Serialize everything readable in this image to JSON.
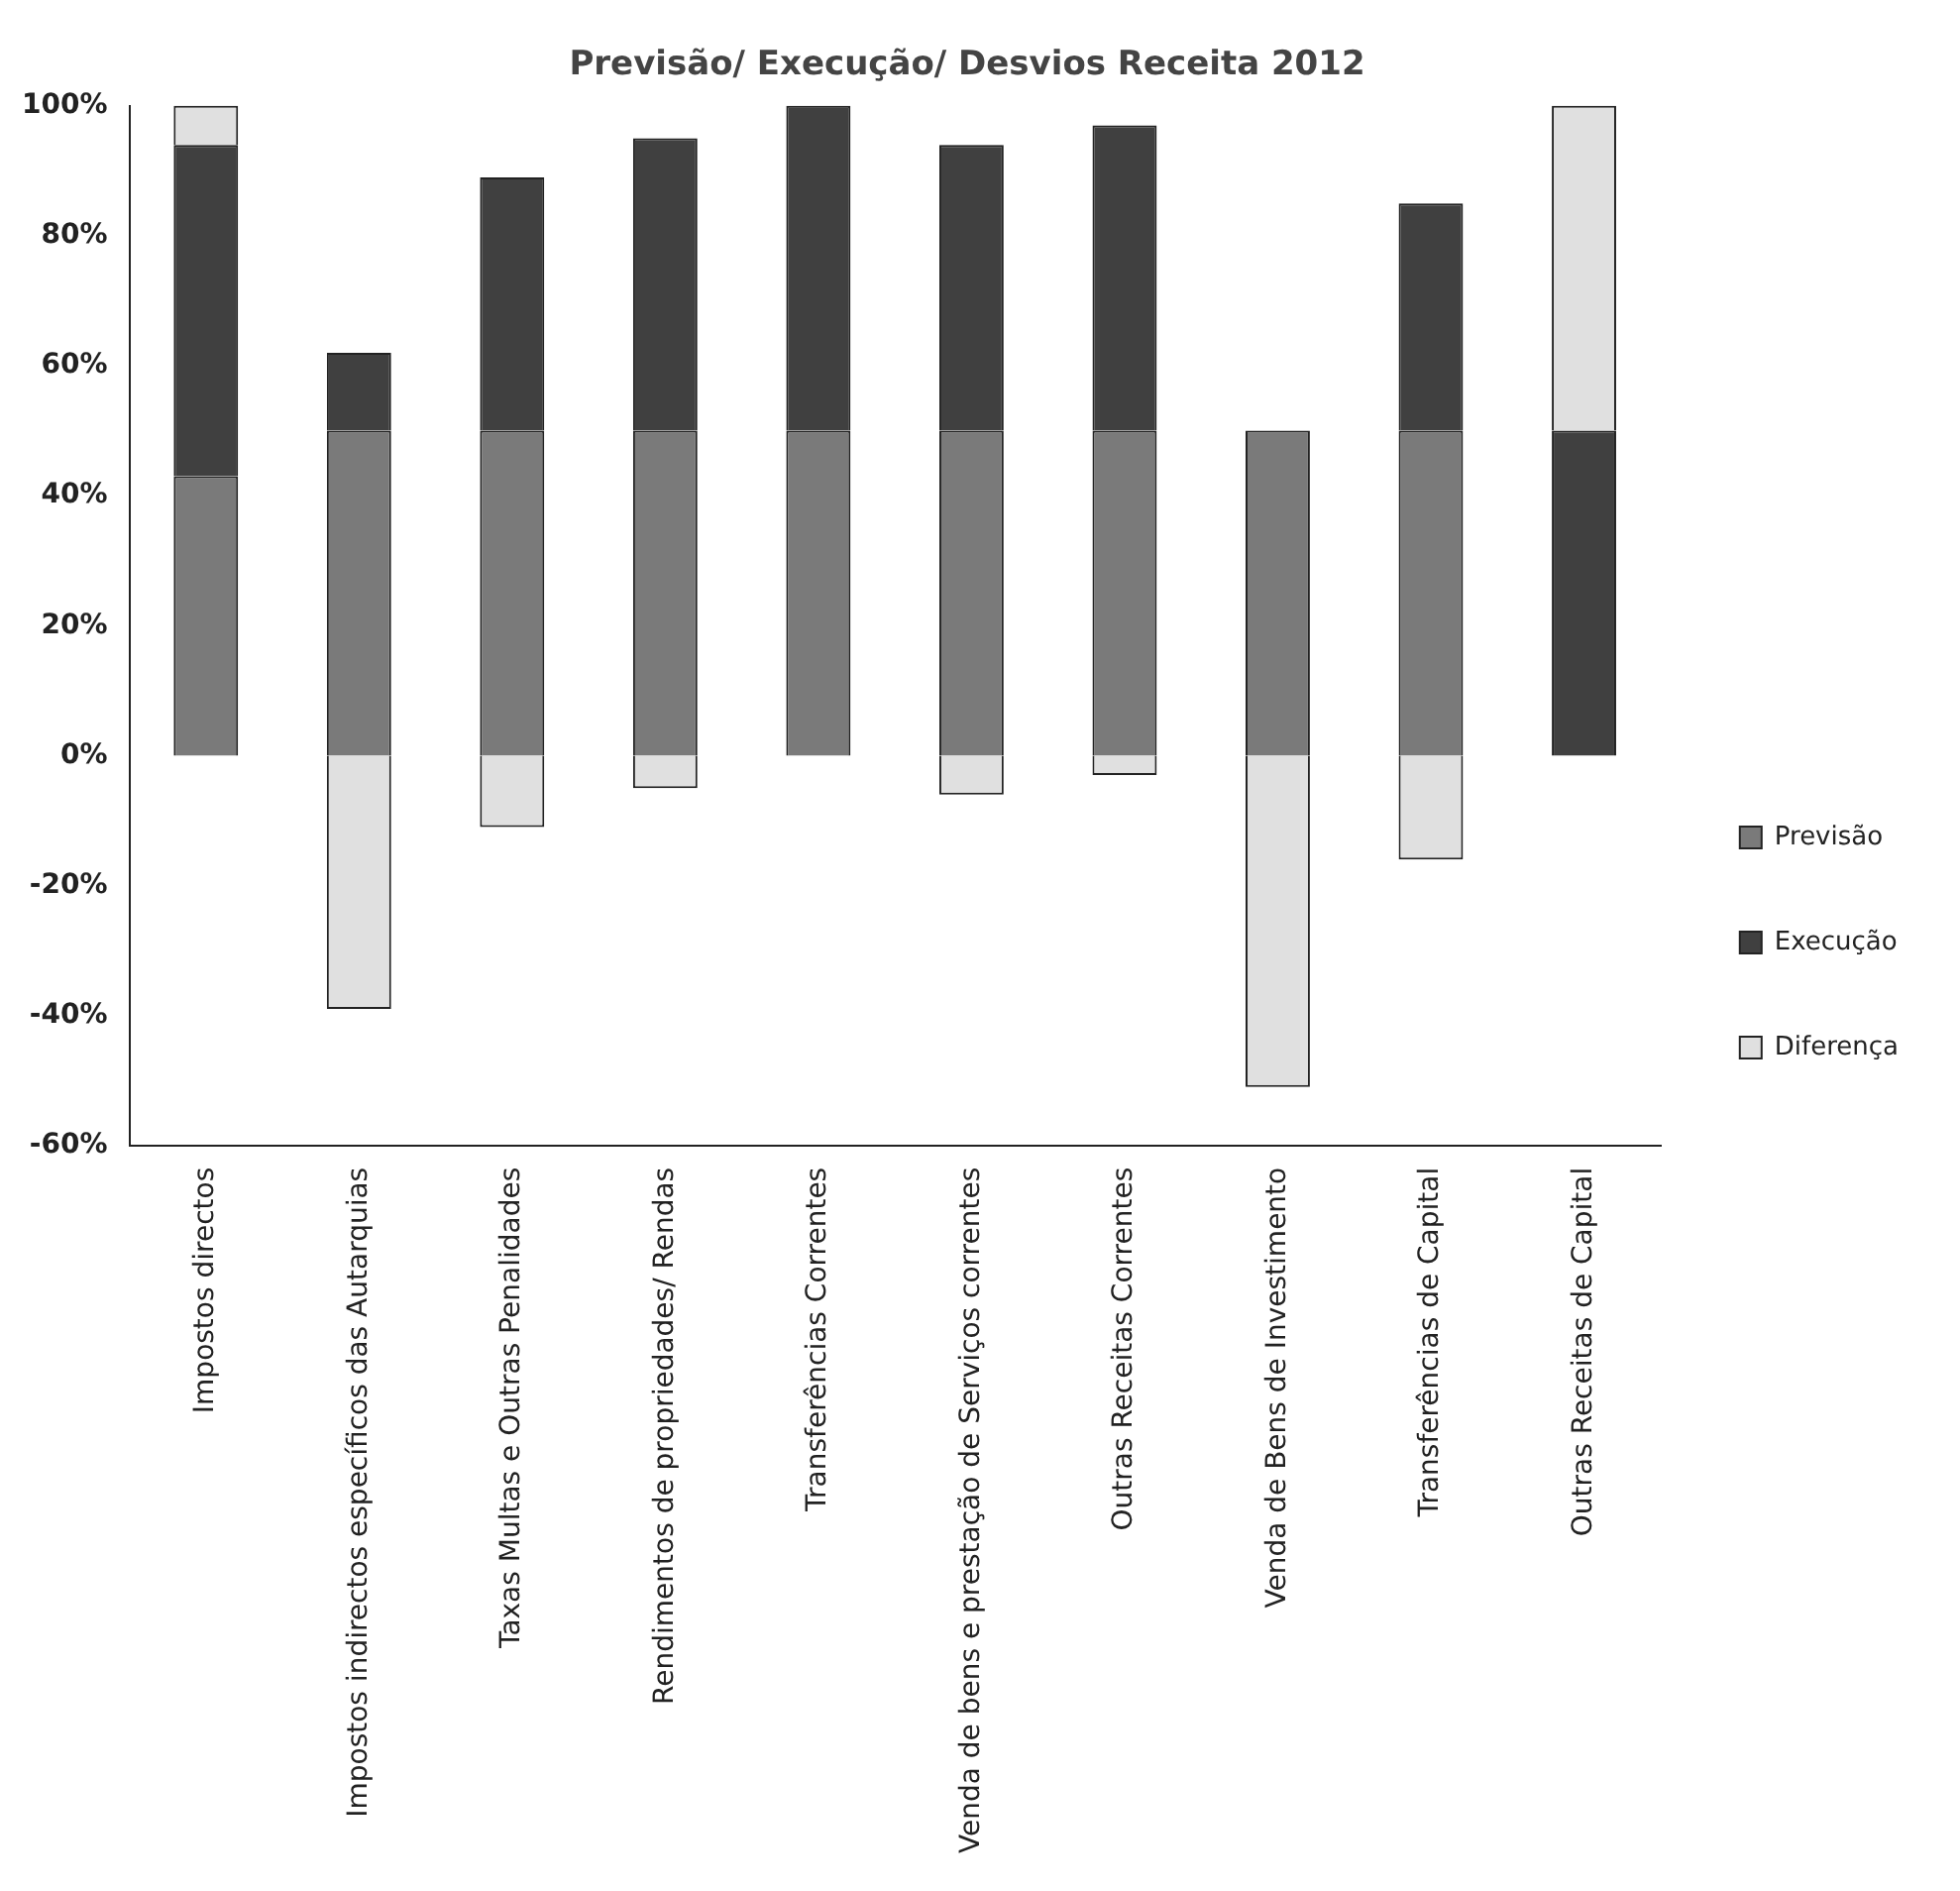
{
  "chart_data": {
    "type": "bar",
    "title": "Previsão/ Execução/ Desvios Receita 2012",
    "categories": [
      "Impostos directos",
      "Impostos indirectos específicos das Autarquias",
      "Taxas Multas e Outras Penalidades",
      "Rendimentos de propriedades/ Rendas",
      "Transferências Correntes",
      "Venda de bens e prestação de Serviços correntes",
      "Outras Receitas Correntes",
      "Venda de Bens de Investimento",
      "Transferências de Capital",
      "Outras Receitas de Capital"
    ],
    "series": [
      {
        "name": "Previsão",
        "color": "#7a7a7a",
        "values": [
          43,
          50,
          50,
          50,
          50,
          50,
          50,
          50,
          50,
          0
        ]
      },
      {
        "name": "Execução",
        "color": "#404040",
        "values": [
          51,
          12,
          39,
          45,
          50,
          44,
          47,
          0,
          35,
          50
        ]
      },
      {
        "name": "Diferença",
        "color": "#e0e0e0",
        "values": [
          6,
          -39,
          -11,
          -5,
          0,
          -6,
          -3,
          -51,
          -16,
          50
        ]
      }
    ],
    "stacked": true,
    "ylim": [
      -60,
      100
    ],
    "yticks": [
      {
        "value": -60,
        "label": "-60%"
      },
      {
        "value": -40,
        "label": "-40%"
      },
      {
        "value": -20,
        "label": "-20%"
      },
      {
        "value": 0,
        "label": "0%"
      },
      {
        "value": 20,
        "label": "20%"
      },
      {
        "value": 40,
        "label": "40%"
      },
      {
        "value": 60,
        "label": "60%"
      },
      {
        "value": 80,
        "label": "80%"
      },
      {
        "value": 100,
        "label": "100%"
      }
    ],
    "grid": false,
    "legend": "right"
  }
}
